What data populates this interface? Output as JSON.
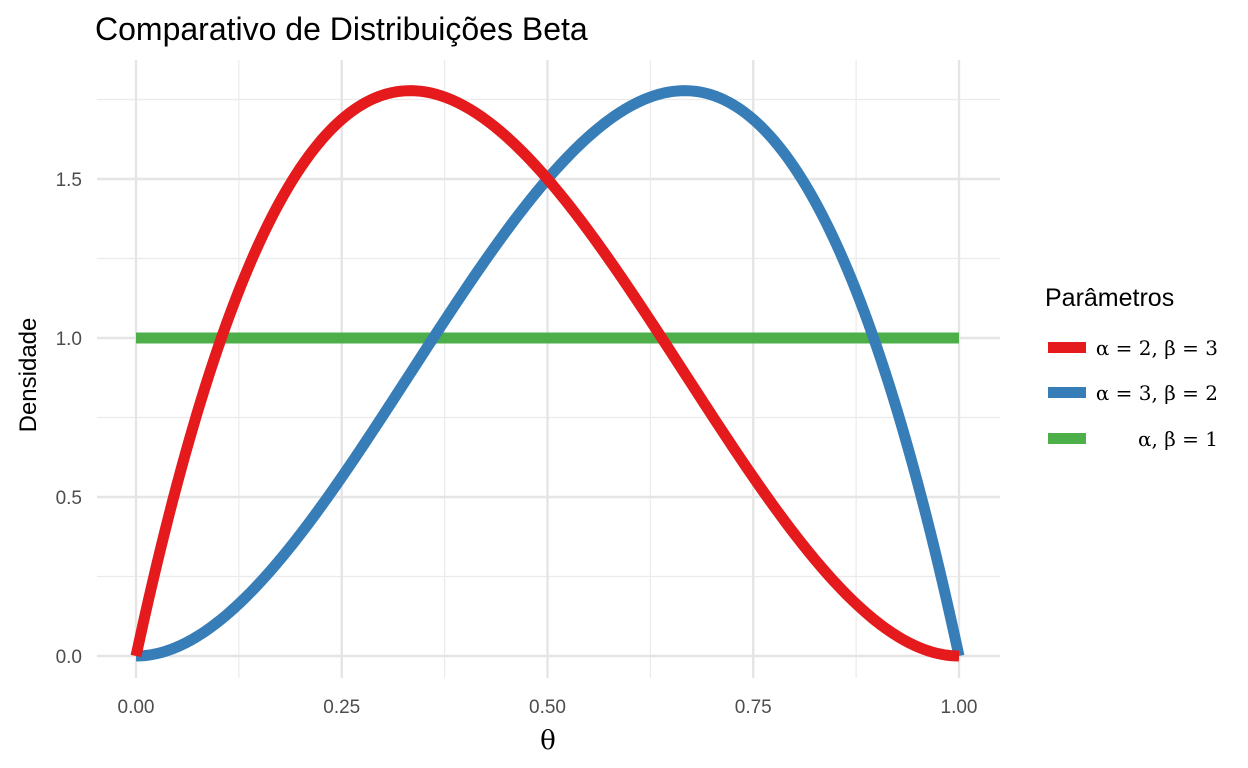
{
  "chart_data": {
    "type": "line",
    "title": "Comparativo de Distribuições Beta",
    "xlabel": "θ",
    "ylabel": "Densidade",
    "xlim": [
      0,
      1
    ],
    "ylim": [
      0,
      1.78
    ],
    "x_ticks": [
      0,
      0.25,
      0.5,
      0.75,
      1.0
    ],
    "x_tick_labels": [
      "0.00",
      "0.25",
      "0.50",
      "0.75",
      "1.00"
    ],
    "y_ticks": [
      0,
      0.5,
      1.0,
      1.5
    ],
    "y_tick_labels": [
      "0.0",
      "0.5",
      "1.0",
      "1.5"
    ],
    "grid": true,
    "legend": {
      "title": "Parâmetros",
      "position": "right"
    },
    "series": [
      {
        "name": "α = 2, β = 3",
        "color": "#E41A1C",
        "alpha": 2,
        "beta": 3,
        "x": [
          0,
          0.05,
          0.1,
          0.15,
          0.2,
          0.25,
          0.3,
          0.3333,
          0.35,
          0.4,
          0.45,
          0.5,
          0.55,
          0.6,
          0.65,
          0.7,
          0.75,
          0.8,
          0.85,
          0.9,
          0.95,
          1.0
        ],
        "y": [
          0,
          0.5415,
          0.972,
          1.2999,
          1.536,
          1.6875,
          1.764,
          1.7778,
          1.7745,
          1.728,
          1.6335,
          1.5,
          1.3365,
          1.152,
          0.9555,
          0.756,
          0.5625,
          0.384,
          0.2295,
          0.108,
          0.0285,
          0
        ]
      },
      {
        "name": "α = 3, β = 2",
        "color": "#377EB8",
        "alpha": 3,
        "beta": 2,
        "x": [
          0,
          0.05,
          0.1,
          0.15,
          0.2,
          0.25,
          0.3,
          0.35,
          0.4,
          0.45,
          0.5,
          0.55,
          0.6,
          0.65,
          0.6667,
          0.7,
          0.75,
          0.8,
          0.85,
          0.9,
          0.95,
          1.0
        ],
        "y": [
          0,
          0.0285,
          0.108,
          0.2295,
          0.384,
          0.5625,
          0.756,
          0.9555,
          1.152,
          1.3365,
          1.5,
          1.6335,
          1.728,
          1.7745,
          1.7778,
          1.764,
          1.6875,
          1.536,
          1.2999,
          0.972,
          0.5415,
          0
        ]
      },
      {
        "name": "α, β = 1",
        "color": "#4DAF4A",
        "alpha": 1,
        "beta": 1,
        "x": [
          0,
          1.0
        ],
        "y": [
          1,
          1
        ]
      }
    ]
  }
}
